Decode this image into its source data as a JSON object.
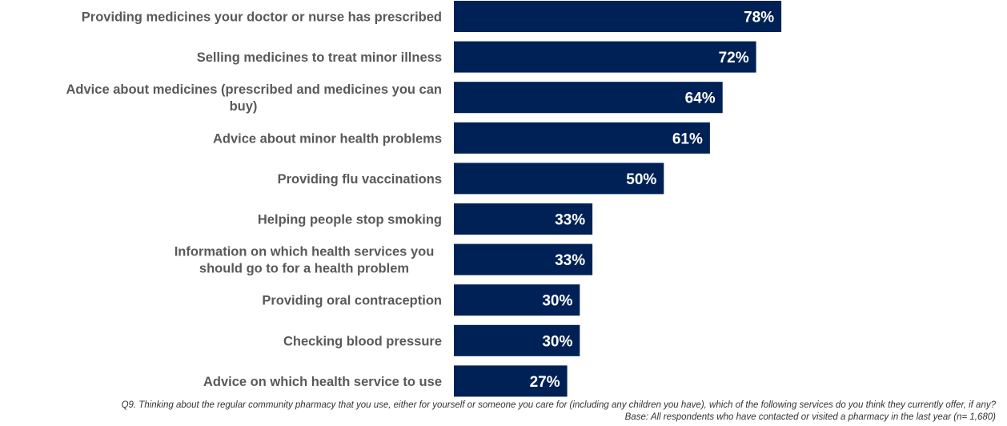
{
  "chart_data": {
    "type": "bar",
    "orientation": "horizontal",
    "categories": [
      [
        "Providing medicines your doctor or nurse has prescribed"
      ],
      [
        "Selling medicines to treat minor illness"
      ],
      [
        "Advice about medicines (prescribed and medicines you can",
        "buy)"
      ],
      [
        "Advice about minor health problems"
      ],
      [
        "Providing flu vaccinations"
      ],
      [
        "Helping people stop smoking"
      ],
      [
        "Information on which health services you",
        "should go to for a health problem"
      ],
      [
        "Providing oral contraception"
      ],
      [
        "Checking blood pressure"
      ],
      [
        "Advice on which health service to use"
      ]
    ],
    "values": [
      78,
      72,
      64,
      61,
      50,
      33,
      33,
      30,
      30,
      27
    ],
    "value_labels": [
      "78%",
      "72%",
      "64%",
      "61%",
      "50%",
      "33%",
      "33%",
      "30%",
      "30%",
      "27%"
    ],
    "bar_color": "#002155",
    "grid": false,
    "legend": "none"
  },
  "footnote": {
    "question": "Q9. Thinking about the regular community pharmacy that you use, either for yourself or someone you care for (including any children you have), which of the following services do you think they currently offer, if any?",
    "base": "Base: All respondents who have contacted or visited a pharmacy in the last year (n= 1,680)"
  }
}
